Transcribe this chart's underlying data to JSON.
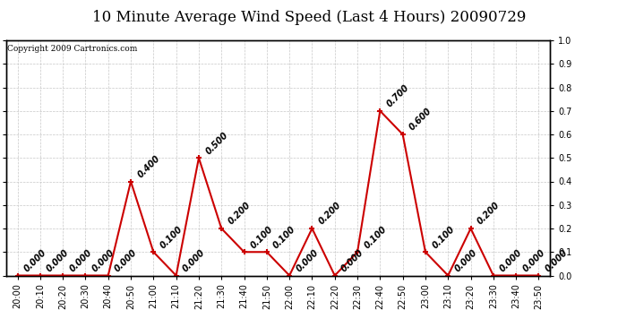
{
  "title": "10 Minute Average Wind Speed (Last 4 Hours) 20090729",
  "copyright": "Copyright 2009 Cartronics.com",
  "x_labels": [
    "20:00",
    "20:10",
    "20:20",
    "20:30",
    "20:40",
    "20:50",
    "21:00",
    "21:10",
    "21:20",
    "21:30",
    "21:40",
    "21:50",
    "22:00",
    "22:10",
    "22:20",
    "22:30",
    "22:40",
    "22:50",
    "23:00",
    "23:10",
    "23:20",
    "23:30",
    "23:40",
    "23:50"
  ],
  "y_values": [
    0.0,
    0.0,
    0.0,
    0.0,
    0.0,
    0.4,
    0.1,
    0.0,
    0.5,
    0.2,
    0.1,
    0.1,
    0.0,
    0.2,
    0.0,
    0.1,
    0.7,
    0.6,
    0.1,
    0.0,
    0.2,
    0.0,
    0.0,
    0.0
  ],
  "ylim": [
    0.0,
    1.0
  ],
  "yticks": [
    0.0,
    0.1,
    0.2,
    0.3,
    0.4,
    0.5,
    0.6,
    0.7,
    0.8,
    0.9,
    1.0
  ],
  "line_color": "#cc0000",
  "marker_color": "#cc0000",
  "bg_color": "#ffffff",
  "grid_color": "#c8c8c8",
  "title_fontsize": 12,
  "annotation_fontsize": 7,
  "tick_fontsize": 7,
  "copyright_fontsize": 6.5
}
